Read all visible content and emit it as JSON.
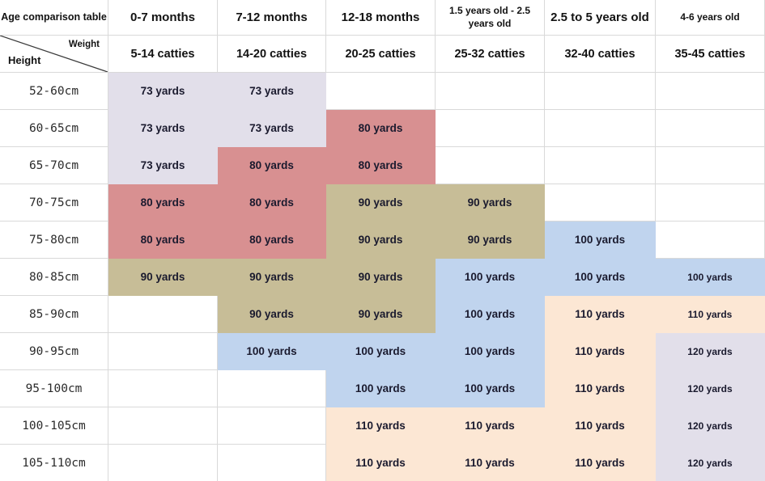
{
  "table": {
    "corner": {
      "title": "Age comparison table",
      "weight_label": "Weight",
      "height_label": "Height"
    },
    "age_headers": [
      "0-7 months",
      "7-12 months",
      "12-18 months",
      "1.5 years old - 2.5 years old",
      "2.5 to 5 years old",
      "4-6 years old"
    ],
    "weight_headers": [
      "5-14 catties",
      "14-20 catties",
      "20-25 catties",
      "25-32 catties",
      "32-40 catties",
      "35-45 catties"
    ],
    "colors": {
      "lavender": "#e2dfea",
      "pink": "#d89091",
      "olive": "#c7bd97",
      "blue": "#c0d4ee",
      "peach": "#fce7d4"
    },
    "rows": [
      {
        "height": "52-60cm",
        "cells": [
          {
            "text": "73 yards",
            "color": "lavender"
          },
          {
            "text": "73 yards",
            "color": "lavender"
          },
          null,
          null,
          null,
          null
        ]
      },
      {
        "height": "60-65cm",
        "cells": [
          {
            "text": "73 yards",
            "color": "lavender"
          },
          {
            "text": "73 yards",
            "color": "lavender"
          },
          {
            "text": "80 yards",
            "color": "pink"
          },
          null,
          null,
          null
        ]
      },
      {
        "height": "65-70cm",
        "cells": [
          {
            "text": "73 yards",
            "color": "lavender"
          },
          {
            "text": "80 yards",
            "color": "pink"
          },
          {
            "text": "80 yards",
            "color": "pink"
          },
          null,
          null,
          null
        ]
      },
      {
        "height": "70-75cm",
        "cells": [
          {
            "text": "80 yards",
            "color": "pink"
          },
          {
            "text": "80 yards",
            "color": "pink"
          },
          {
            "text": "90 yards",
            "color": "olive"
          },
          {
            "text": "90 yards",
            "color": "olive"
          },
          null,
          null
        ]
      },
      {
        "height": "75-80cm",
        "cells": [
          {
            "text": "80 yards",
            "color": "pink"
          },
          {
            "text": "80 yards",
            "color": "pink"
          },
          {
            "text": "90 yards",
            "color": "olive"
          },
          {
            "text": "90 yards",
            "color": "olive"
          },
          {
            "text": "100 yards",
            "color": "blue"
          },
          null
        ]
      },
      {
        "height": "80-85cm",
        "cells": [
          {
            "text": "90 yards",
            "color": "olive"
          },
          {
            "text": "90 yards",
            "color": "olive"
          },
          {
            "text": "90 yards",
            "color": "olive"
          },
          {
            "text": "100 yards",
            "color": "blue"
          },
          {
            "text": "100 yards",
            "color": "blue"
          },
          {
            "text": "100 yards",
            "color": "blue",
            "size": "small"
          }
        ]
      },
      {
        "height": "85-90cm",
        "cells": [
          null,
          {
            "text": "90 yards",
            "color": "olive"
          },
          {
            "text": "90 yards",
            "color": "olive"
          },
          {
            "text": "100 yards",
            "color": "blue"
          },
          {
            "text": "110 yards",
            "color": "peach"
          },
          {
            "text": "110 yards",
            "color": "peach",
            "size": "small"
          }
        ]
      },
      {
        "height": "90-95cm",
        "cells": [
          null,
          {
            "text": "100 yards",
            "color": "blue"
          },
          {
            "text": "100 yards",
            "color": "blue"
          },
          {
            "text": "100 yards",
            "color": "blue"
          },
          {
            "text": "110 yards",
            "color": "peach"
          },
          {
            "text": "120 yards",
            "color": "lavender",
            "size": "small"
          }
        ]
      },
      {
        "height": "95-100cm",
        "cells": [
          null,
          null,
          {
            "text": "100 yards",
            "color": "blue"
          },
          {
            "text": "100 yards",
            "color": "blue"
          },
          {
            "text": "110 yards",
            "color": "peach"
          },
          {
            "text": "120 yards",
            "color": "lavender",
            "size": "small"
          }
        ]
      },
      {
        "height": "100-105cm",
        "cells": [
          null,
          null,
          {
            "text": "110 yards",
            "color": "peach"
          },
          {
            "text": "110 yards",
            "color": "peach"
          },
          {
            "text": "110 yards",
            "color": "peach"
          },
          {
            "text": "120 yards",
            "color": "lavender",
            "size": "small"
          }
        ]
      },
      {
        "height": "105-110cm",
        "cells": [
          null,
          null,
          {
            "text": "110 yards",
            "color": "peach"
          },
          {
            "text": "110 yards",
            "color": "peach"
          },
          {
            "text": "110 yards",
            "color": "peach"
          },
          {
            "text": "120 yards",
            "color": "lavender",
            "size": "small"
          }
        ]
      }
    ]
  },
  "chart_data": {
    "type": "table",
    "title": "Age comparison table",
    "row_header": "Height",
    "column_header": "Weight",
    "age_groups": [
      "0-7 months",
      "7-12 months",
      "12-18 months",
      "1.5 years old - 2.5 years old",
      "2.5 to 5 years old",
      "4-6 years old"
    ],
    "weights_catties": [
      "5-14",
      "14-20",
      "20-25",
      "25-32",
      "32-40",
      "35-45"
    ],
    "heights_cm": [
      "52-60",
      "60-65",
      "65-70",
      "70-75",
      "75-80",
      "80-85",
      "85-90",
      "90-95",
      "95-100",
      "100-105",
      "105-110"
    ],
    "size_yards_matrix": [
      [
        73,
        73,
        null,
        null,
        null,
        null
      ],
      [
        73,
        73,
        80,
        null,
        null,
        null
      ],
      [
        73,
        80,
        80,
        null,
        null,
        null
      ],
      [
        80,
        80,
        90,
        90,
        null,
        null
      ],
      [
        80,
        80,
        90,
        90,
        100,
        null
      ],
      [
        90,
        90,
        90,
        100,
        100,
        100
      ],
      [
        null,
        90,
        90,
        100,
        110,
        110
      ],
      [
        null,
        100,
        100,
        100,
        110,
        120
      ],
      [
        null,
        null,
        100,
        100,
        110,
        120
      ],
      [
        null,
        null,
        110,
        110,
        110,
        120
      ],
      [
        null,
        null,
        110,
        110,
        110,
        120
      ]
    ]
  }
}
